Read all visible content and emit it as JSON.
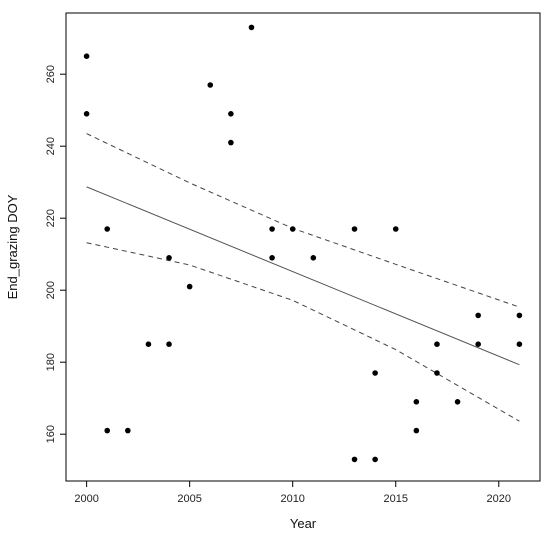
{
  "chart_data": {
    "type": "scatter",
    "title": "",
    "xlabel": "Year",
    "ylabel": "End_grazing DOY",
    "xlim": [
      1999,
      2022
    ],
    "ylim": [
      147,
      277
    ],
    "xticks": [
      2000,
      2005,
      2010,
      2015,
      2020
    ],
    "yticks": [
      160,
      180,
      200,
      220,
      240,
      260
    ],
    "x_tick_labels": [
      "2000",
      "2005",
      "2010",
      "2015",
      "2020"
    ],
    "y_tick_labels": [
      "160",
      "180",
      "200",
      "220",
      "240",
      "260"
    ],
    "grid": false,
    "points": [
      {
        "x": 2000,
        "y": 265
      },
      {
        "x": 2000,
        "y": 249
      },
      {
        "x": 2001,
        "y": 217
      },
      {
        "x": 2001,
        "y": 161
      },
      {
        "x": 2002,
        "y": 161
      },
      {
        "x": 2003,
        "y": 185
      },
      {
        "x": 2004,
        "y": 209
      },
      {
        "x": 2004,
        "y": 185
      },
      {
        "x": 2005,
        "y": 201
      },
      {
        "x": 2006,
        "y": 257
      },
      {
        "x": 2007,
        "y": 249
      },
      {
        "x": 2007,
        "y": 241
      },
      {
        "x": 2008,
        "y": 273
      },
      {
        "x": 2009,
        "y": 217
      },
      {
        "x": 2009,
        "y": 209
      },
      {
        "x": 2010,
        "y": 217
      },
      {
        "x": 2011,
        "y": 209
      },
      {
        "x": 2013,
        "y": 217
      },
      {
        "x": 2013,
        "y": 153
      },
      {
        "x": 2014,
        "y": 177
      },
      {
        "x": 2014,
        "y": 153
      },
      {
        "x": 2015,
        "y": 217
      },
      {
        "x": 2016,
        "y": 169
      },
      {
        "x": 2016,
        "y": 161
      },
      {
        "x": 2017,
        "y": 185
      },
      {
        "x": 2017,
        "y": 177
      },
      {
        "x": 2018,
        "y": 169
      },
      {
        "x": 2019,
        "y": 193
      },
      {
        "x": 2019,
        "y": 185
      },
      {
        "x": 2021,
        "y": 193
      },
      {
        "x": 2021,
        "y": 185
      }
    ],
    "fit_line": {
      "x": [
        2000,
        2021
      ],
      "y": [
        228.7,
        179.3
      ]
    },
    "ci_upper": {
      "x": [
        2000,
        2005,
        2010,
        2015,
        2021
      ],
      "y": [
        243.5,
        229.8,
        217.2,
        207.2,
        195.3
      ]
    },
    "ci_lower": {
      "x": [
        2000,
        2005,
        2010,
        2015,
        2021
      ],
      "y": [
        213.2,
        207.0,
        197.2,
        183.5,
        163.6
      ]
    }
  }
}
